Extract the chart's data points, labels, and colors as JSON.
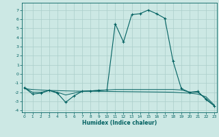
{
  "xlabel": "Humidex (Indice chaleur)",
  "background_color": "#cce8e4",
  "grid_color": "#aaceca",
  "line_color": "#006060",
  "x_values": [
    0,
    1,
    2,
    3,
    4,
    5,
    6,
    7,
    8,
    9,
    10,
    11,
    12,
    13,
    14,
    15,
    16,
    17,
    18,
    19,
    20,
    21,
    22,
    23
  ],
  "y_main": [
    -1.5,
    -2.2,
    -2.1,
    -1.8,
    -2.1,
    -3.1,
    -2.4,
    -1.9,
    -1.85,
    -1.8,
    -1.75,
    5.5,
    3.5,
    6.5,
    6.6,
    7.0,
    6.6,
    6.1,
    1.4,
    -1.6,
    -2.0,
    -1.9,
    -2.8,
    -3.5
  ],
  "y_smooth": [
    -1.5,
    -2.0,
    -2.0,
    -1.8,
    -2.0,
    -2.3,
    -2.1,
    -1.9,
    -1.85,
    -1.8,
    -1.75,
    -1.7,
    -1.7,
    -1.7,
    -1.7,
    -1.7,
    -1.7,
    -1.7,
    -1.7,
    -1.75,
    -2.0,
    -2.0,
    -2.7,
    -3.5
  ],
  "y_trend": [
    -1.6,
    -1.7,
    -1.75,
    -1.8,
    -1.82,
    -1.85,
    -1.87,
    -1.88,
    -1.89,
    -1.9,
    -1.91,
    -1.92,
    -1.93,
    -1.94,
    -1.95,
    -1.96,
    -1.97,
    -1.98,
    -2.0,
    -2.05,
    -2.1,
    -2.2,
    -2.5,
    -3.4
  ],
  "ylim": [
    -4.2,
    7.8
  ],
  "xlim": [
    -0.3,
    23.3
  ],
  "yticks": [
    -4,
    -3,
    -2,
    -1,
    0,
    1,
    2,
    3,
    4,
    5,
    6,
    7
  ],
  "xticks": [
    0,
    1,
    2,
    3,
    4,
    5,
    6,
    7,
    8,
    9,
    10,
    11,
    12,
    13,
    14,
    15,
    16,
    17,
    18,
    19,
    20,
    21,
    22,
    23
  ]
}
